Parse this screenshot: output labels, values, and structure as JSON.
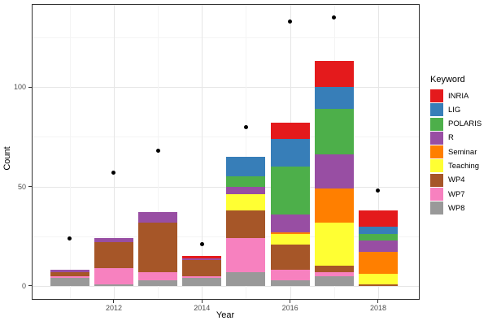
{
  "figure": {
    "xlabel": "Year",
    "ylabel": "Count",
    "legend_title": "Keyword"
  },
  "chart_data": {
    "type": "bar",
    "stacked": true,
    "grid": true,
    "legend_position": "right",
    "categories": [
      2011,
      2012,
      2013,
      2014,
      2015,
      2016,
      2017,
      2018
    ],
    "series": [
      {
        "name": "WP8",
        "color": "#999999",
        "values": [
          4,
          1,
          3,
          4,
          7,
          3,
          5,
          0
        ]
      },
      {
        "name": "WP7",
        "color": "#f781bf",
        "values": [
          1,
          8,
          4,
          1,
          17,
          5,
          2,
          0
        ]
      },
      {
        "name": "WP4",
        "color": "#a65628",
        "values": [
          2,
          13,
          25,
          8,
          14,
          13,
          3,
          1
        ]
      },
      {
        "name": "Teaching",
        "color": "#ffff33",
        "values": [
          0,
          0,
          0,
          0,
          8,
          5,
          22,
          5
        ]
      },
      {
        "name": "Seminar",
        "color": "#ff7f00",
        "values": [
          0,
          0,
          0,
          0,
          0,
          1,
          17,
          11
        ]
      },
      {
        "name": "R",
        "color": "#984ea3",
        "values": [
          1,
          2,
          5,
          1,
          4,
          9,
          17,
          6
        ]
      },
      {
        "name": "POLARIS",
        "color": "#4daf4a",
        "values": [
          0,
          0,
          0,
          0,
          5,
          24,
          23,
          3
        ]
      },
      {
        "name": "LIG",
        "color": "#377eb8",
        "values": [
          0,
          0,
          0,
          0,
          10,
          14,
          11,
          4
        ]
      },
      {
        "name": "INRIA",
        "color": "#e41a1c",
        "values": [
          0,
          0,
          0,
          1,
          0,
          8,
          13,
          8
        ]
      }
    ],
    "points": {
      "name": "yearly-total-dots",
      "color": "#000000",
      "values": [
        24,
        57,
        68,
        21,
        80,
        133,
        135,
        48
      ]
    },
    "legend_order": [
      "INRIA",
      "LIG",
      "POLARIS",
      "R",
      "Seminar",
      "Teaching",
      "WP4",
      "WP7",
      "WP8"
    ],
    "y_major_ticks": [
      0,
      50,
      100
    ],
    "y_minor_gridlines": [
      25,
      75,
      125
    ],
    "x_labeled_ticks": [
      2012,
      2014,
      2016,
      2018
    ],
    "ylim": [
      -6.75,
      141.75
    ],
    "bar_width_fraction": 0.9
  }
}
